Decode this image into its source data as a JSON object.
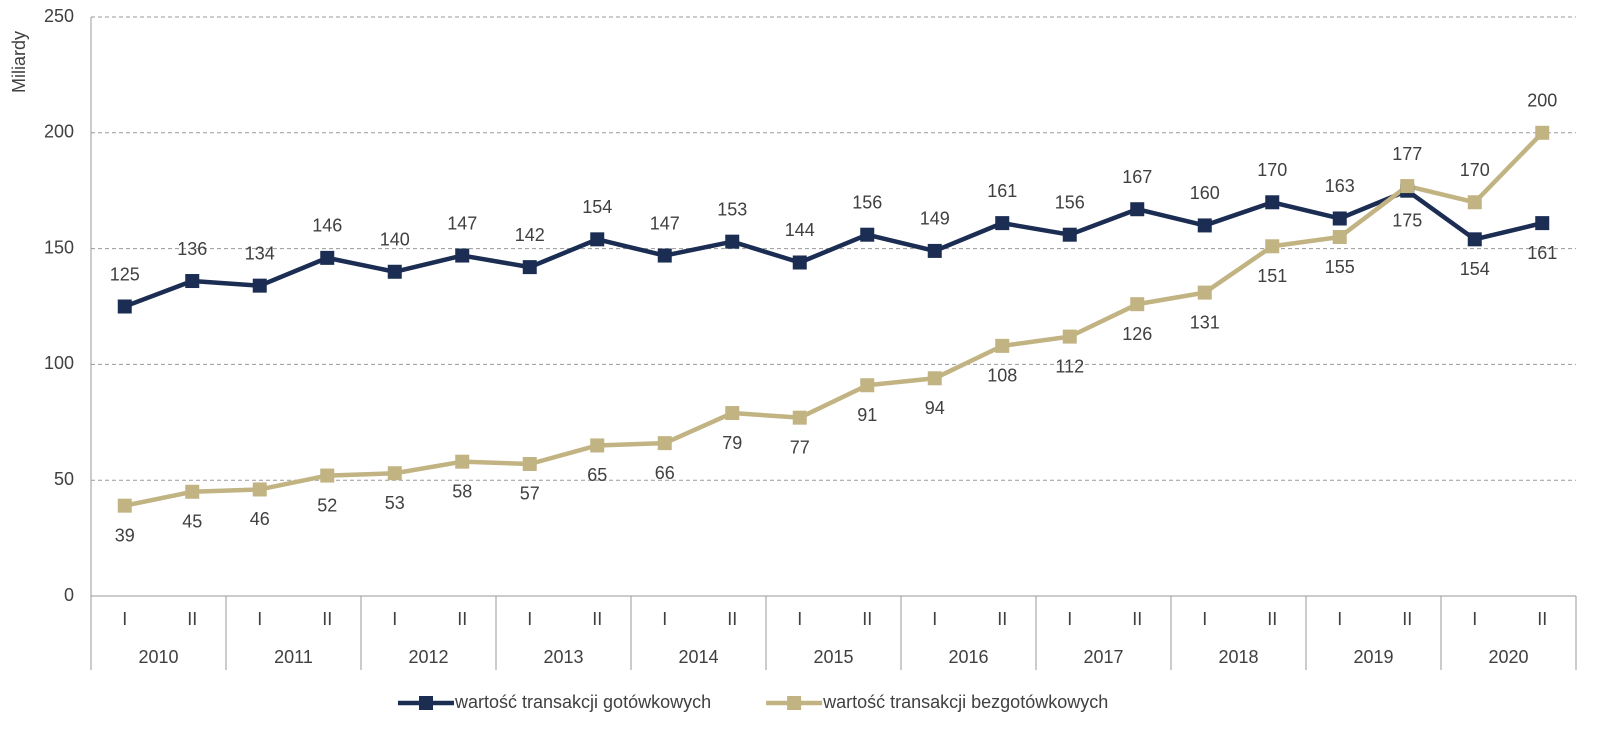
{
  "chart_data": {
    "type": "line",
    "y_axis_label": "Miliardy",
    "categories": [
      "I",
      "II",
      "I",
      "II",
      "I",
      "II",
      "I",
      "II",
      "I",
      "II",
      "I",
      "II",
      "I",
      "II",
      "I",
      "II",
      "I",
      "II",
      "I",
      "II",
      "I",
      "II"
    ],
    "years": [
      "2010",
      "2011",
      "2012",
      "2013",
      "2014",
      "2015",
      "2016",
      "2017",
      "2018",
      "2019",
      "2020"
    ],
    "series": [
      {
        "name": "wartość transakcji gotówkowych",
        "color": "#1b2d52",
        "values": [
          125,
          136,
          134,
          146,
          140,
          147,
          142,
          154,
          147,
          153,
          144,
          156,
          149,
          161,
          156,
          167,
          160,
          170,
          163,
          175,
          154,
          161
        ]
      },
      {
        "name": "wartość transakcji bezgotówkowych",
        "color": "#c2b383",
        "values": [
          39,
          45,
          46,
          52,
          53,
          58,
          57,
          65,
          66,
          79,
          77,
          91,
          94,
          108,
          112,
          126,
          131,
          151,
          155,
          177,
          170,
          200
        ]
      }
    ],
    "ylim": [
      0,
      250
    ],
    "yticks": [
      0,
      50,
      100,
      150,
      200,
      250
    ],
    "grid": true,
    "legend": "bottom"
  }
}
